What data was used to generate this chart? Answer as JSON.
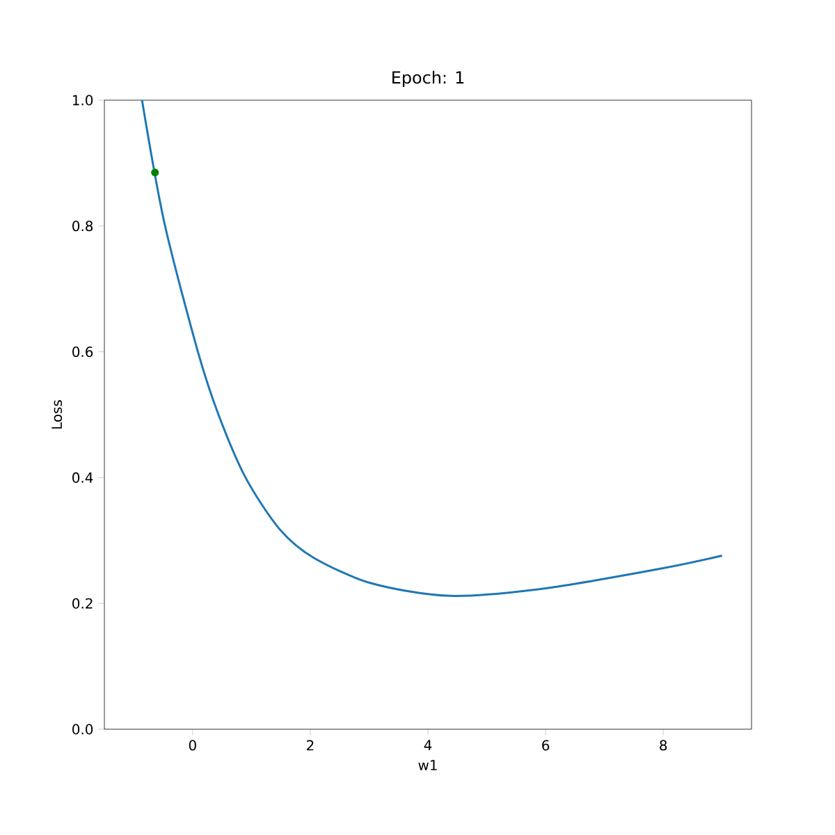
{
  "chart_data": {
    "type": "line",
    "title": "Epoch: 1",
    "xlabel": "w1",
    "ylabel": "Loss",
    "xlim": [
      -1.5,
      9.5
    ],
    "ylim": [
      0,
      1
    ],
    "xticks": [
      0,
      2,
      4,
      6,
      8
    ],
    "yticks": [
      {
        "value": 0,
        "label": "0.0"
      },
      {
        "value": 0.2,
        "label": "0.2"
      },
      {
        "value": 0.4,
        "label": "0.4"
      },
      {
        "value": 0.6,
        "label": "0.6"
      },
      {
        "value": 0.8,
        "label": "0.8"
      },
      {
        "value": 1,
        "label": "1.0"
      }
    ],
    "series": [
      {
        "color": "#1f77b4",
        "marker": "none",
        "x": [
          -0.86,
          -0.48,
          0.09,
          0.44,
          0.9,
          1.47,
          2.05,
          3.04,
          4.37,
          6.0,
          8.0,
          9.0
        ],
        "values": [
          1.0,
          0.805,
          0.6,
          0.5,
          0.4,
          0.319,
          0.273,
          0.232,
          0.212,
          0.224,
          0.256,
          0.276
        ]
      },
      {
        "type": "scatter",
        "color": "#008000",
        "marker": "circle",
        "x": [
          -0.64
        ],
        "values": [
          0.885
        ]
      }
    ]
  }
}
